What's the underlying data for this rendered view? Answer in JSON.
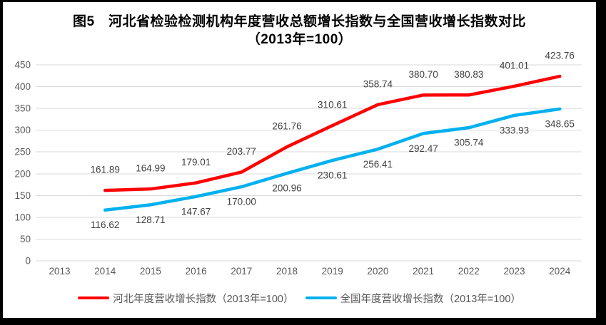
{
  "title": {
    "line1": "图5　河北省检验检测机构年度营收总额增长指数与全国营收增长指数对比",
    "line2": "（2013年=100）"
  },
  "chart_data": {
    "type": "line",
    "title": "图5 河北省检验检测机构年度营收总额增长指数与全国营收增长指数对比（2013年=100）",
    "x_categories": [
      "2013",
      "2014",
      "2015",
      "2016",
      "2017",
      "2018",
      "2019",
      "2020",
      "2021",
      "2022",
      "2023",
      "2024"
    ],
    "y_ticks": [
      0,
      50,
      100,
      150,
      200,
      250,
      300,
      350,
      400,
      450
    ],
    "ylim": [
      0,
      450
    ],
    "grid": "horizontal-only",
    "legend_position": "bottom",
    "data_labels": "shown, 2 decimals",
    "series": [
      {
        "name": "河北年度营收增长指数（2013年=100）",
        "color": "#ff0000",
        "label_position": "above",
        "x": [
          "2014",
          "2015",
          "2016",
          "2017",
          "2018",
          "2019",
          "2020",
          "2021",
          "2022",
          "2023",
          "2024"
        ],
        "values": [
          161.89,
          164.99,
          179.01,
          203.77,
          261.76,
          310.61,
          358.74,
          380.7,
          380.83,
          401.01,
          423.76
        ]
      },
      {
        "name": "全国年度营收增长指数（2013年=100）",
        "color": "#00b0f0",
        "label_position": "below",
        "x": [
          "2014",
          "2015",
          "2016",
          "2017",
          "2018",
          "2019",
          "2020",
          "2021",
          "2022",
          "2023",
          "2024"
        ],
        "values": [
          116.62,
          128.71,
          147.67,
          170.0,
          200.96,
          230.61,
          256.41,
          292.47,
          305.74,
          333.93,
          348.65
        ]
      }
    ],
    "colors": {
      "gridline": "#d9d9d9",
      "axis_text": "#595959",
      "data_label": "#404040",
      "title_text": "#000000",
      "frame_border": "#000000"
    }
  }
}
